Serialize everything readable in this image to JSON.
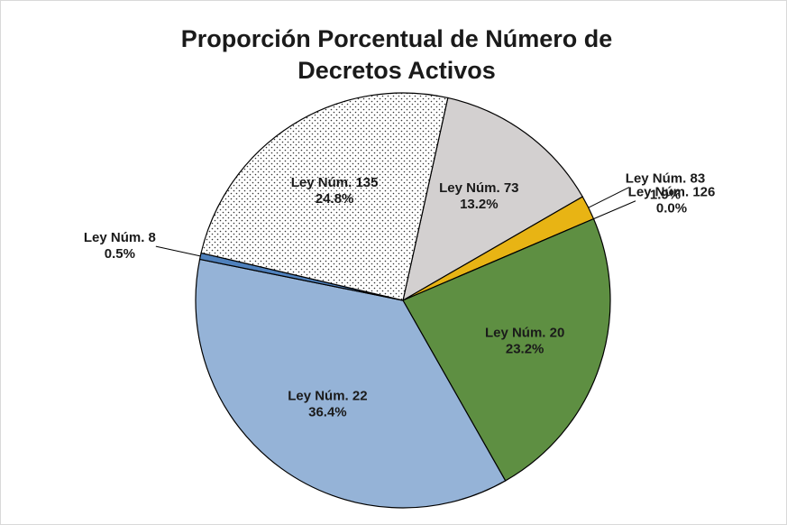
{
  "chart_data": {
    "type": "pie",
    "title": [
      "Proporción Porcentual de Número de",
      "Decretos Activos"
    ],
    "categories": [
      "Ley Núm. 73",
      "Ley Núm. 83",
      "Ley Núm. 126",
      "Ley Núm. 20",
      "Ley Núm. 22",
      "Ley Núm. 8",
      "Ley Núm. 135"
    ],
    "values": [
      13.2,
      1.9,
      0.0,
      23.2,
      36.4,
      0.5,
      24.8
    ],
    "value_labels": [
      "13.2%",
      "1.9%",
      "0.0%",
      "23.2%",
      "36.4%",
      "0.5%",
      "24.8%"
    ],
    "colors": [
      "#d3d0d0",
      "#e8b414",
      "#4a7a2c",
      "#5e8f42",
      "#95b3d7",
      "#4f81bd",
      "#ffffff"
    ]
  }
}
